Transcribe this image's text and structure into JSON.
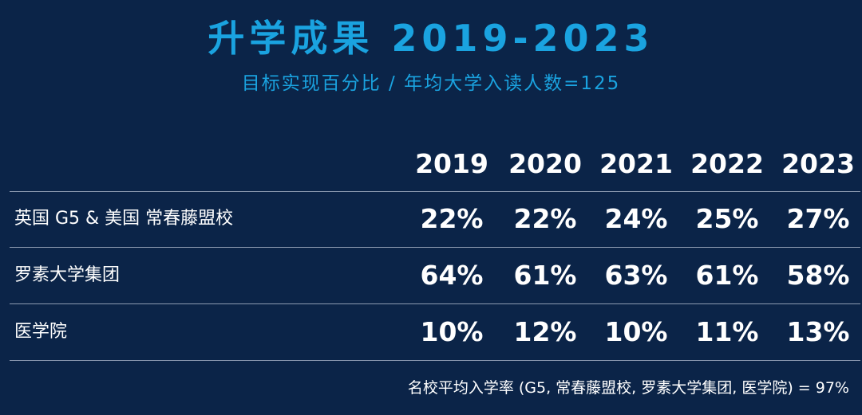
{
  "title": "升学成果 2019-2023",
  "subtitle": "目标实现百分比 / 年均大学入读人数=125",
  "footer_note": "名校平均入学率 (G5, 常春藤盟校, 罗素大学集团, 医学院) = 97%",
  "colors": {
    "background": "#0b2448",
    "accent": "#1aa3e0",
    "text": "#ffffff",
    "divider": "#8e9cb2"
  },
  "chart_data": {
    "type": "table",
    "title": "升学成果 2019-2023",
    "subtitle": "目标实现百分比 / 年均大学入读人数=125",
    "columns": [
      "2019",
      "2020",
      "2021",
      "2022",
      "2023"
    ],
    "rows": [
      {
        "label": "英国 G5 & 美国 常春藤盟校",
        "values": [
          22,
          22,
          24,
          25,
          27
        ],
        "display": [
          "22%",
          "22%",
          "24%",
          "25%",
          "27%"
        ]
      },
      {
        "label": "罗素大学集团",
        "values": [
          64,
          61,
          63,
          61,
          58
        ],
        "display": [
          "64%",
          "61%",
          "63%",
          "61%",
          "58%"
        ]
      },
      {
        "label": "医学院",
        "values": [
          10,
          12,
          10,
          11,
          13
        ],
        "display": [
          "10%",
          "12%",
          "10%",
          "11%",
          "13%"
        ]
      }
    ],
    "unit": "%",
    "footnote": "名校平均入学率 (G5, 常春藤盟校, 罗素大学集团, 医学院) = 97%"
  }
}
